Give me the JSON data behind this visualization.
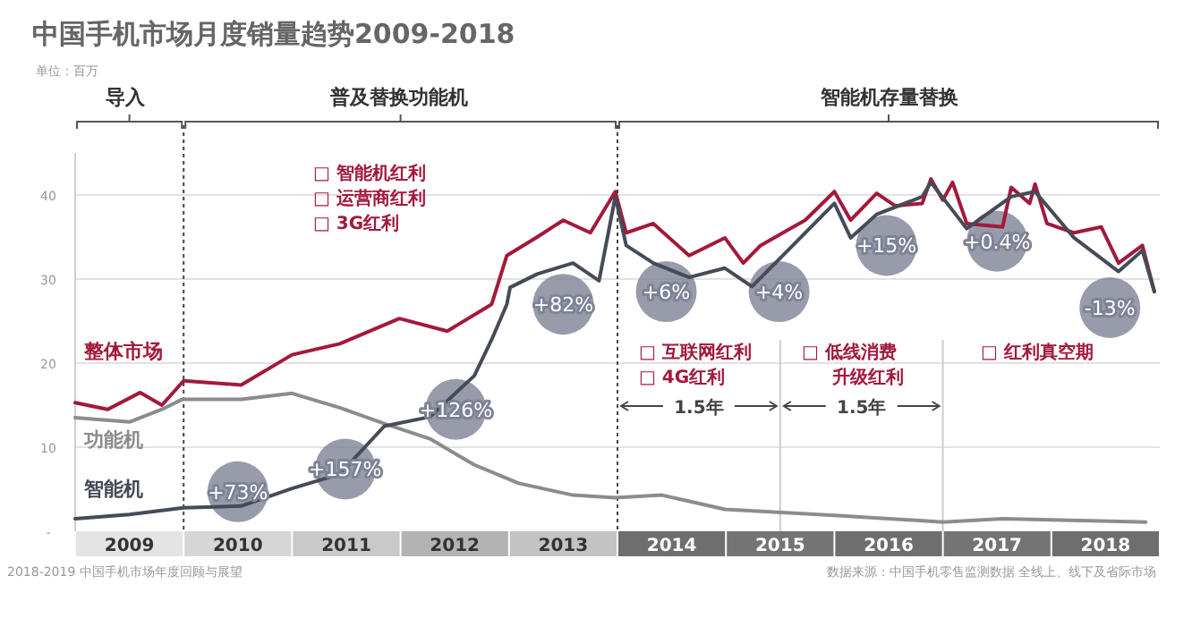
{
  "chart_data": {
    "type": "line",
    "title": "中国手机市场月度销量趋势2009-2018",
    "xlim": [
      2009,
      2019
    ],
    "xticks": [
      {
        "value": 2009.5,
        "label": "2009"
      },
      {
        "value": 2010.5,
        "label": "2010"
      },
      {
        "value": 2011.5,
        "label": "2011"
      },
      {
        "value": 2012.5,
        "label": "2012"
      },
      {
        "value": 2013.5,
        "label": "2013"
      },
      {
        "value": 2014.5,
        "label": "2014"
      },
      {
        "value": 2015.5,
        "label": "2015"
      },
      {
        "value": 2016.5,
        "label": "2016"
      },
      {
        "value": 2017.5,
        "label": "2017"
      },
      {
        "value": 2018.5,
        "label": "2018"
      }
    ],
    "ylim": [
      0,
      45
    ],
    "yticks": [
      {
        "value": 0,
        "label": "-"
      },
      10,
      20,
      30,
      40
    ],
    "grid": "y",
    "series": [
      {
        "name": "整体市场",
        "color": "#a3193c",
        "x": [
          2009.0,
          2009.3,
          2009.6,
          2009.8,
          2010.0,
          2010.53,
          2011.0,
          2011.44,
          2011.99,
          2012.43,
          2012.84,
          2012.98,
          2013.26,
          2013.5,
          2013.75,
          2013.98,
          2014.08,
          2014.33,
          2014.66,
          2014.99,
          2015.16,
          2015.32,
          2015.73,
          2016.0,
          2016.15,
          2016.39,
          2016.56,
          2016.81,
          2016.89,
          2017.0,
          2017.09,
          2017.22,
          2017.55,
          2017.63,
          2017.8,
          2017.85,
          2017.96,
          2018.21,
          2018.46,
          2018.62,
          2018.84,
          2018.95
        ],
        "values": [
          15.3,
          14.5,
          16.5,
          15,
          17.9,
          17.4,
          21,
          22.3,
          25.3,
          23.8,
          27,
          32.8,
          35,
          37,
          35.5,
          40.4,
          35.5,
          36.6,
          32.8,
          34.9,
          31.9,
          34,
          37,
          40.4,
          37,
          40.2,
          38.7,
          39,
          41.9,
          39.4,
          41.5,
          36.6,
          36.2,
          40.9,
          39,
          41.3,
          36.6,
          35.5,
          36.2,
          31.9,
          34,
          28.5
        ]
      },
      {
        "name": "功能机",
        "color": "#8c8c8c",
        "x": [
          2009.0,
          2009.5,
          2009.8,
          2009.99,
          2010.53,
          2011.0,
          2011.44,
          2011.85,
          2012.27,
          2012.68,
          2013.09,
          2013.59,
          2013.98,
          2014.41,
          2014.99,
          2016.0,
          2017.0,
          2017.55,
          2018.87
        ],
        "values": [
          13.5,
          13,
          14.5,
          15.7,
          15.7,
          16.4,
          14.7,
          12.8,
          11,
          7.9,
          5.7,
          4.3,
          4,
          4.3,
          2.6,
          1.9,
          1.1,
          1.5,
          1.1
        ]
      },
      {
        "name": "智能机",
        "color": "#454b57",
        "x": [
          2009.0,
          2009.5,
          2010.0,
          2010.53,
          2011.0,
          2011.44,
          2011.85,
          2012.27,
          2012.68,
          2012.84,
          2012.98,
          2013.01,
          2013.26,
          2013.59,
          2013.83,
          2013.98,
          2014.08,
          2014.33,
          2014.66,
          2014.99,
          2015.24,
          2015.57,
          2016.0,
          2016.15,
          2016.39,
          2016.81,
          2016.89,
          2017.22,
          2017.63,
          2017.85,
          2018.21,
          2018.62,
          2018.84,
          2018.95
        ],
        "values": [
          1.5,
          2,
          2.8,
          3,
          5.1,
          6.8,
          12.5,
          13.6,
          18.5,
          22.8,
          27,
          29,
          30.6,
          31.9,
          29.8,
          39.8,
          34,
          31.9,
          30.2,
          31.3,
          29.1,
          33.4,
          39,
          34.9,
          37.7,
          39.8,
          41.5,
          36,
          39.8,
          40.4,
          34.9,
          30.9,
          33.4,
          28.5
        ]
      }
    ],
    "ref_lines": [
      {
        "axis": "x",
        "value": 2010,
        "line_style": "dotted",
        "color": "#444444"
      },
      {
        "axis": "x",
        "value": 2014,
        "line_style": "dotted",
        "color": "#444444"
      }
    ],
    "annotations": [
      "单位：百万",
      "导入",
      "普及替换功能机",
      "智能机存量替换",
      "□ 智能机红利",
      "□ 运营商红利",
      "□ 3G红利",
      "□ 互联网红利",
      "□ 4G红利",
      "□ 低线消费",
      "升级红利",
      "□ 红利真空期",
      "1.5年",
      "1.5年",
      "2018-2019 中国手机市场年度回顾与展望",
      "数据来源：中国手机零售监测数据 全线上、线下及省际市场",
      {
        "text": "+73%",
        "x": 2010.5,
        "y": 4.7
      },
      {
        "text": "+157%",
        "x": 2011.49,
        "y": 7.4
      },
      {
        "text": "+126%",
        "x": 2012.51,
        "y": 14.5
      },
      {
        "text": "+82%",
        "x": 2013.5,
        "y": 27
      },
      {
        "text": "+6%",
        "x": 2014.45,
        "y": 28.5
      },
      {
        "text": "+4%",
        "x": 2015.49,
        "y": 28.5
      },
      {
        "text": "+15%",
        "x": 2016.48,
        "y": 34
      },
      {
        "text": "+0.4%",
        "x": 2017.5,
        "y": 34.5
      },
      {
        "text": "-13%",
        "x": 2018.54,
        "y": 26.6
      }
    ]
  }
}
